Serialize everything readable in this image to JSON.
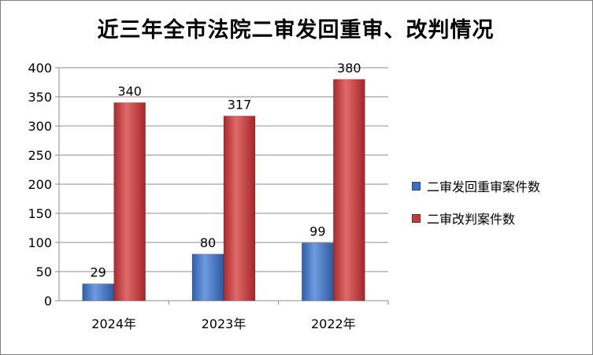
{
  "chart_data": {
    "type": "bar",
    "title": "近三年全市法院二审发回重审、改判情况",
    "categories": [
      "2024年",
      "2023年",
      "2022年"
    ],
    "series": [
      {
        "name": "二审发回重审案件数",
        "values": [
          29,
          80,
          99
        ],
        "color": "#3a6fc4"
      },
      {
        "name": "二审改判案件数",
        "values": [
          340,
          317,
          380
        ],
        "color": "#c0393b"
      }
    ],
    "ylim": [
      0,
      400
    ],
    "yticks": [
      0,
      50,
      100,
      150,
      200,
      250,
      300,
      350,
      400
    ],
    "grid": true,
    "legend": "right",
    "xlabel": "",
    "ylabel": ""
  }
}
